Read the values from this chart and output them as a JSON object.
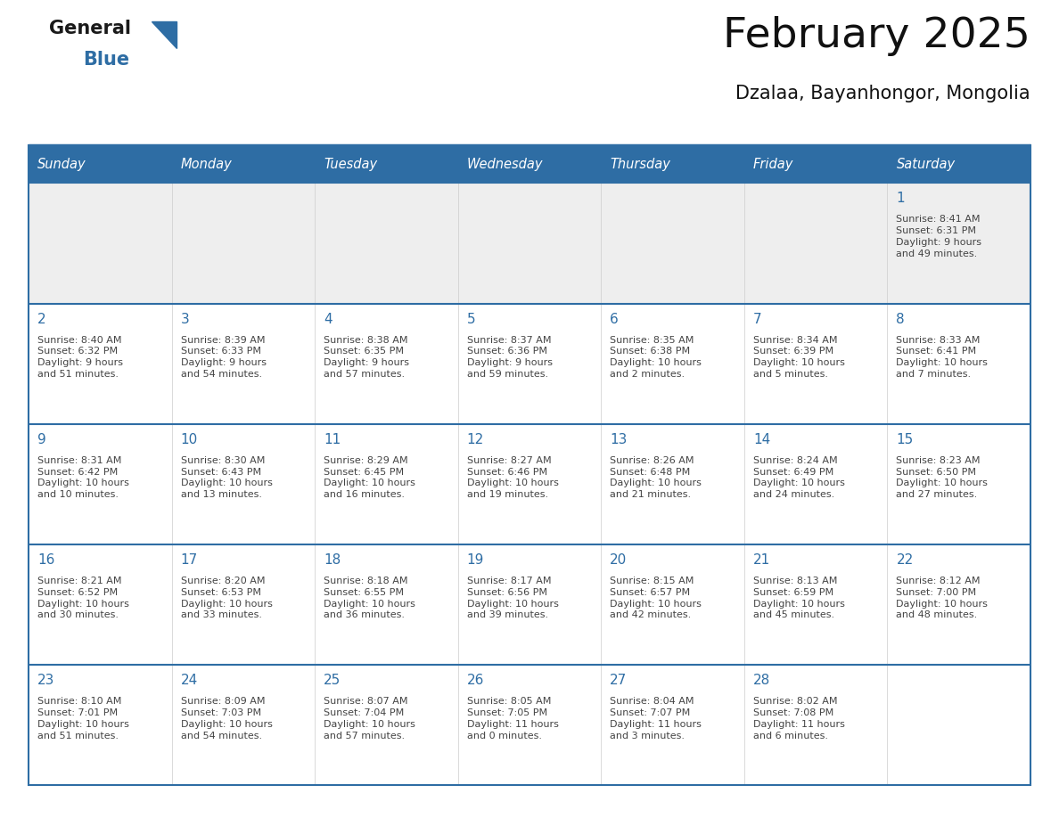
{
  "title": "February 2025",
  "subtitle": "Dzalaa, Bayanhongor, Mongolia",
  "days_of_week": [
    "Sunday",
    "Monday",
    "Tuesday",
    "Wednesday",
    "Thursday",
    "Friday",
    "Saturday"
  ],
  "header_bg": "#2E6DA4",
  "header_text": "#FFFFFF",
  "row1_bg": "#EEEEEE",
  "cell_bg": "#FFFFFF",
  "border_color": "#2E6DA4",
  "day_num_color": "#2E6DA4",
  "text_color": "#444444",
  "logo_general_color": "#1a1a1a",
  "logo_blue_color": "#2E6DA4",
  "weeks": [
    [
      {
        "day": null,
        "info": null
      },
      {
        "day": null,
        "info": null
      },
      {
        "day": null,
        "info": null
      },
      {
        "day": null,
        "info": null
      },
      {
        "day": null,
        "info": null
      },
      {
        "day": null,
        "info": null
      },
      {
        "day": 1,
        "info": "Sunrise: 8:41 AM\nSunset: 6:31 PM\nDaylight: 9 hours\nand 49 minutes."
      }
    ],
    [
      {
        "day": 2,
        "info": "Sunrise: 8:40 AM\nSunset: 6:32 PM\nDaylight: 9 hours\nand 51 minutes."
      },
      {
        "day": 3,
        "info": "Sunrise: 8:39 AM\nSunset: 6:33 PM\nDaylight: 9 hours\nand 54 minutes."
      },
      {
        "day": 4,
        "info": "Sunrise: 8:38 AM\nSunset: 6:35 PM\nDaylight: 9 hours\nand 57 minutes."
      },
      {
        "day": 5,
        "info": "Sunrise: 8:37 AM\nSunset: 6:36 PM\nDaylight: 9 hours\nand 59 minutes."
      },
      {
        "day": 6,
        "info": "Sunrise: 8:35 AM\nSunset: 6:38 PM\nDaylight: 10 hours\nand 2 minutes."
      },
      {
        "day": 7,
        "info": "Sunrise: 8:34 AM\nSunset: 6:39 PM\nDaylight: 10 hours\nand 5 minutes."
      },
      {
        "day": 8,
        "info": "Sunrise: 8:33 AM\nSunset: 6:41 PM\nDaylight: 10 hours\nand 7 minutes."
      }
    ],
    [
      {
        "day": 9,
        "info": "Sunrise: 8:31 AM\nSunset: 6:42 PM\nDaylight: 10 hours\nand 10 minutes."
      },
      {
        "day": 10,
        "info": "Sunrise: 8:30 AM\nSunset: 6:43 PM\nDaylight: 10 hours\nand 13 minutes."
      },
      {
        "day": 11,
        "info": "Sunrise: 8:29 AM\nSunset: 6:45 PM\nDaylight: 10 hours\nand 16 minutes."
      },
      {
        "day": 12,
        "info": "Sunrise: 8:27 AM\nSunset: 6:46 PM\nDaylight: 10 hours\nand 19 minutes."
      },
      {
        "day": 13,
        "info": "Sunrise: 8:26 AM\nSunset: 6:48 PM\nDaylight: 10 hours\nand 21 minutes."
      },
      {
        "day": 14,
        "info": "Sunrise: 8:24 AM\nSunset: 6:49 PM\nDaylight: 10 hours\nand 24 minutes."
      },
      {
        "day": 15,
        "info": "Sunrise: 8:23 AM\nSunset: 6:50 PM\nDaylight: 10 hours\nand 27 minutes."
      }
    ],
    [
      {
        "day": 16,
        "info": "Sunrise: 8:21 AM\nSunset: 6:52 PM\nDaylight: 10 hours\nand 30 minutes."
      },
      {
        "day": 17,
        "info": "Sunrise: 8:20 AM\nSunset: 6:53 PM\nDaylight: 10 hours\nand 33 minutes."
      },
      {
        "day": 18,
        "info": "Sunrise: 8:18 AM\nSunset: 6:55 PM\nDaylight: 10 hours\nand 36 minutes."
      },
      {
        "day": 19,
        "info": "Sunrise: 8:17 AM\nSunset: 6:56 PM\nDaylight: 10 hours\nand 39 minutes."
      },
      {
        "day": 20,
        "info": "Sunrise: 8:15 AM\nSunset: 6:57 PM\nDaylight: 10 hours\nand 42 minutes."
      },
      {
        "day": 21,
        "info": "Sunrise: 8:13 AM\nSunset: 6:59 PM\nDaylight: 10 hours\nand 45 minutes."
      },
      {
        "day": 22,
        "info": "Sunrise: 8:12 AM\nSunset: 7:00 PM\nDaylight: 10 hours\nand 48 minutes."
      }
    ],
    [
      {
        "day": 23,
        "info": "Sunrise: 8:10 AM\nSunset: 7:01 PM\nDaylight: 10 hours\nand 51 minutes."
      },
      {
        "day": 24,
        "info": "Sunrise: 8:09 AM\nSunset: 7:03 PM\nDaylight: 10 hours\nand 54 minutes."
      },
      {
        "day": 25,
        "info": "Sunrise: 8:07 AM\nSunset: 7:04 PM\nDaylight: 10 hours\nand 57 minutes."
      },
      {
        "day": 26,
        "info": "Sunrise: 8:05 AM\nSunset: 7:05 PM\nDaylight: 11 hours\nand 0 minutes."
      },
      {
        "day": 27,
        "info": "Sunrise: 8:04 AM\nSunset: 7:07 PM\nDaylight: 11 hours\nand 3 minutes."
      },
      {
        "day": 28,
        "info": "Sunrise: 8:02 AM\nSunset: 7:08 PM\nDaylight: 11 hours\nand 6 minutes."
      },
      {
        "day": null,
        "info": null
      }
    ]
  ]
}
